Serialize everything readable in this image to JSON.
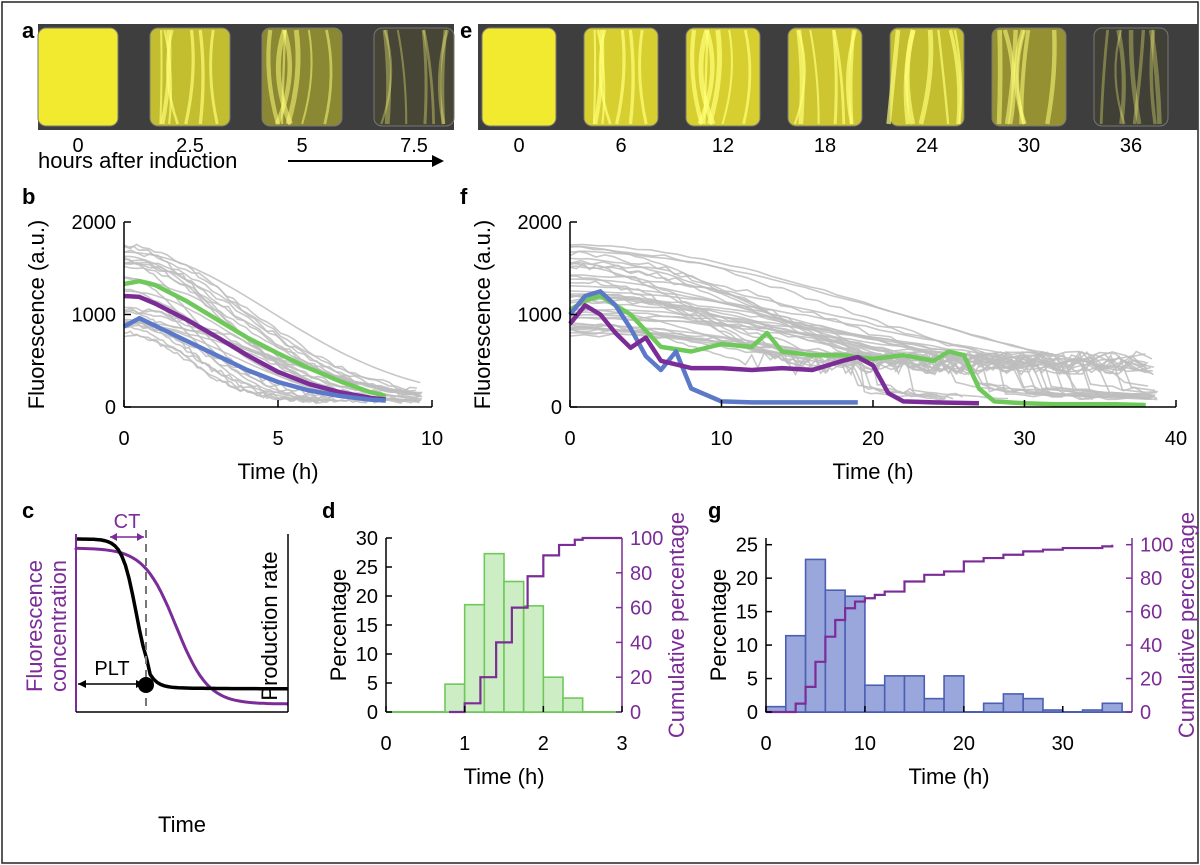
{
  "colors": {
    "yellow": "#f2ea2e",
    "gray_trace": "#bdbdbd",
    "green": "#6fc95a",
    "blue": "#5b79c8",
    "purple": "#7b2c97",
    "hist_green_fill": "#cdeec4",
    "hist_green_edge": "#6fc95a",
    "hist_blue_fill": "#9aa7dc",
    "hist_blue_edge": "#4c5fb3",
    "axis": "#000000"
  },
  "panels": {
    "a": {
      "letter": "a",
      "labels": [
        "0",
        "2.5",
        "5",
        "7.5"
      ],
      "intensity": [
        1.0,
        0.75,
        0.45,
        0.08
      ],
      "caption": "hours after induction"
    },
    "e": {
      "letter": "e",
      "labels": [
        "0",
        "6",
        "12",
        "18",
        "24",
        "30",
        "36"
      ],
      "intensity": [
        1.0,
        0.85,
        0.85,
        0.8,
        0.75,
        0.5,
        0.05
      ]
    },
    "c": {
      "letter": "c",
      "ylabel_left": [
        "Fluorescence",
        "concentration"
      ],
      "ylabel_right": "Production rate",
      "xlabel": "Time",
      "ct_label": "CT",
      "plt_label": "PLT"
    }
  },
  "chart_data": [
    {
      "panel": "b",
      "type": "line",
      "xlabel": "Time (h)",
      "ylabel": "Fluorescence (a.u.)",
      "xlim": [
        0,
        10
      ],
      "ylim": [
        0,
        2000
      ],
      "xticks": [
        0,
        5,
        10
      ],
      "yticks": [
        0,
        1000,
        2000
      ],
      "gray_traces": 30,
      "series": [
        {
          "color": "green",
          "x": [
            0,
            0.5,
            1,
            2,
            3,
            4,
            5,
            6,
            7,
            8,
            8.5
          ],
          "y": [
            1330,
            1360,
            1320,
            1150,
            950,
            750,
            580,
            420,
            280,
            160,
            120
          ]
        },
        {
          "color": "purple",
          "x": [
            0,
            0.5,
            1,
            2,
            3,
            4,
            5,
            6,
            7,
            8,
            8.5
          ],
          "y": [
            1200,
            1190,
            1120,
            950,
            760,
            560,
            380,
            250,
            160,
            100,
            80
          ]
        },
        {
          "color": "blue",
          "x": [
            0,
            0.5,
            1,
            2,
            3,
            4,
            5,
            6,
            7,
            8,
            8.5
          ],
          "y": [
            870,
            960,
            880,
            720,
            560,
            400,
            270,
            180,
            120,
            80,
            70
          ]
        }
      ]
    },
    {
      "panel": "f",
      "type": "line",
      "xlabel": "Time (h)",
      "ylabel": "Fluorescence (a.u.)",
      "xlim": [
        0,
        40
      ],
      "ylim": [
        0,
        2000
      ],
      "xticks": [
        0,
        10,
        20,
        30,
        40
      ],
      "yticks": [
        0,
        1000,
        2000
      ],
      "gray_traces": 40,
      "series": [
        {
          "color": "green",
          "x": [
            0,
            1,
            2,
            4,
            6,
            8,
            10,
            12,
            13,
            14,
            16,
            18,
            20,
            22,
            24,
            25,
            26,
            27,
            28,
            30,
            32,
            34,
            36,
            38
          ],
          "y": [
            1050,
            1150,
            1200,
            1000,
            650,
            600,
            680,
            650,
            800,
            600,
            560,
            560,
            520,
            560,
            500,
            600,
            560,
            200,
            60,
            40,
            30,
            30,
            30,
            20
          ]
        },
        {
          "color": "blue",
          "x": [
            0,
            1,
            2,
            3,
            4,
            5,
            6,
            7,
            8,
            10,
            12,
            15,
            19
          ],
          "y": [
            1000,
            1200,
            1250,
            1100,
            850,
            550,
            400,
            600,
            200,
            60,
            50,
            50,
            50
          ]
        },
        {
          "color": "purple",
          "x": [
            0,
            1,
            2,
            3,
            4,
            5,
            6,
            8,
            10,
            12,
            14,
            16,
            18,
            19,
            20,
            21,
            22,
            24,
            27
          ],
          "y": [
            900,
            1100,
            1000,
            800,
            640,
            750,
            500,
            420,
            420,
            400,
            420,
            400,
            500,
            540,
            450,
            150,
            60,
            50,
            40
          ]
        }
      ]
    },
    {
      "panel": "d",
      "type": "bar",
      "xlabel": "Time (h)",
      "ylabel": "Percentage",
      "ylabel_right": "Cumulative percentage",
      "xlim": [
        0,
        3
      ],
      "ylim": [
        0,
        30
      ],
      "ylim_right": [
        0,
        100
      ],
      "xticks": [
        0,
        1,
        2,
        3
      ],
      "yticks": [
        0,
        5,
        10,
        15,
        20,
        25,
        30
      ],
      "yticks_right": [
        0,
        20,
        40,
        60,
        80,
        100
      ],
      "bin_width": 0.25,
      "bins": [
        0.75,
        1.0,
        1.25,
        1.5,
        1.75,
        2.0,
        2.25
      ],
      "values": [
        4.8,
        18.5,
        27.3,
        22.5,
        18.3,
        6.0,
        2.4
      ],
      "cumulative": {
        "x": [
          0.8,
          1.0,
          1.2,
          1.4,
          1.6,
          1.8,
          2.0,
          2.2,
          2.4,
          2.5,
          2.6,
          2.8,
          3.0
        ],
        "y": [
          0,
          5,
          20,
          40,
          60,
          78,
          90,
          96,
          99,
          100,
          100,
          100,
          100
        ]
      }
    },
    {
      "panel": "g",
      "type": "bar",
      "xlabel": "Time (h)",
      "ylabel": "Percentage",
      "ylabel_right": "Cumulative percentage",
      "xlim": [
        0,
        37
      ],
      "ylim": [
        0,
        26
      ],
      "ylim_right": [
        0,
        104
      ],
      "xticks": [
        0,
        10,
        20,
        30
      ],
      "yticks": [
        0,
        5,
        10,
        15,
        20,
        25
      ],
      "yticks_right": [
        0,
        20,
        40,
        60,
        80,
        100
      ],
      "bin_width": 2,
      "bins": [
        0,
        2,
        4,
        6,
        8,
        10,
        12,
        14,
        16,
        18,
        22,
        24,
        26,
        28,
        32,
        34
      ],
      "values": [
        0.8,
        11.4,
        22.8,
        18.2,
        17.3,
        4.0,
        5.4,
        5.4,
        2.0,
        5.4,
        1.3,
        2.7,
        2.0,
        0.3,
        0.3,
        1.3
      ],
      "cumulative": {
        "x": [
          0,
          2,
          3,
          4,
          5,
          6,
          7,
          8,
          9,
          10,
          11,
          12,
          14,
          16,
          18,
          20,
          22,
          24,
          26,
          28,
          30,
          32,
          34,
          35
        ],
        "y": [
          0,
          0,
          5,
          15,
          30,
          45,
          55,
          62,
          66,
          68,
          70,
          72,
          78,
          82,
          84,
          90,
          92,
          94,
          96,
          97,
          98,
          98,
          99,
          100
        ]
      }
    }
  ]
}
